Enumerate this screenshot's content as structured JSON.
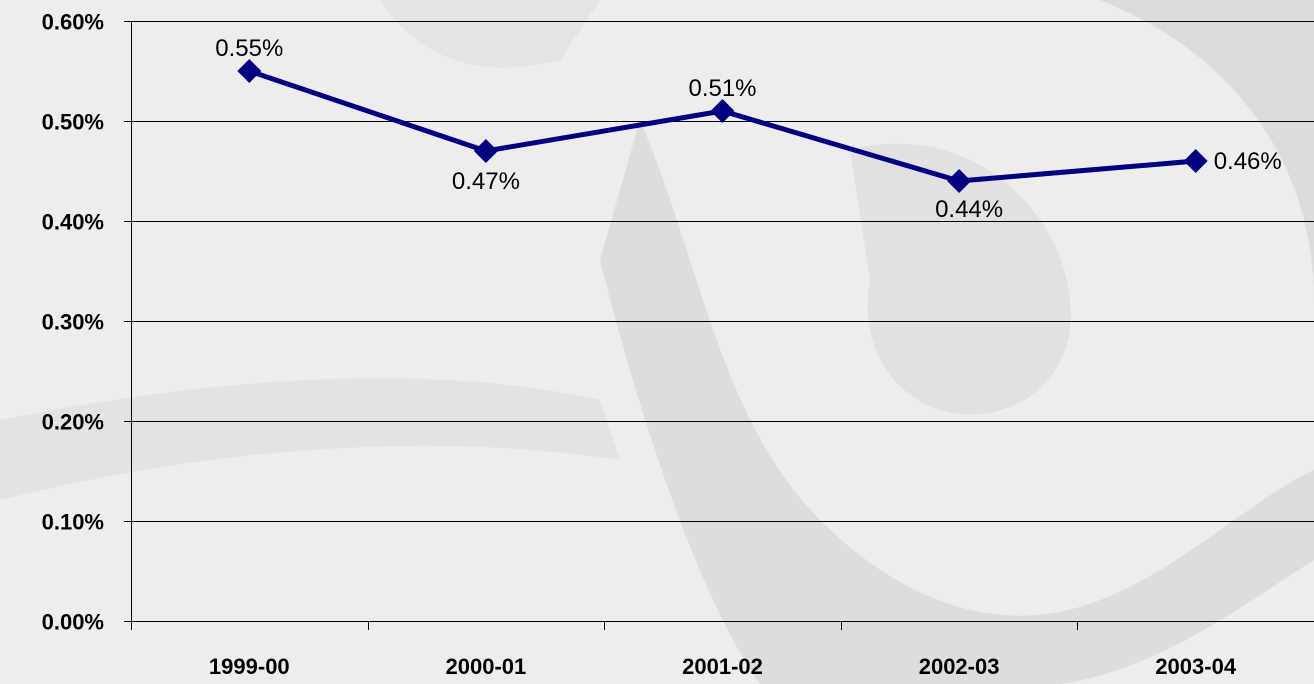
{
  "chart_data": {
    "type": "line",
    "title": "",
    "xlabel": "",
    "ylabel": "",
    "categories": [
      "1999-00",
      "2000-01",
      "2001-02",
      "2002-03",
      "2003-04"
    ],
    "series": [
      {
        "values": [
          0.55,
          0.47,
          0.51,
          0.44,
          0.46
        ],
        "data_labels": [
          "0.55%",
          "0.47%",
          "0.51%",
          "0.44%",
          "0.46%"
        ],
        "color": "#000080",
        "marker": "diamond"
      }
    ],
    "ylim": [
      0,
      0.6
    ],
    "yticks": [
      0,
      0.1,
      0.2,
      0.3,
      0.4,
      0.5,
      0.6
    ],
    "ytick_labels": [
      "0.00%",
      "0.10%",
      "0.20%",
      "0.30%",
      "0.40%",
      "0.50%",
      "0.60%"
    ],
    "grid": true,
    "legend": "none",
    "background": "stethoscope photo, greyscale"
  }
}
